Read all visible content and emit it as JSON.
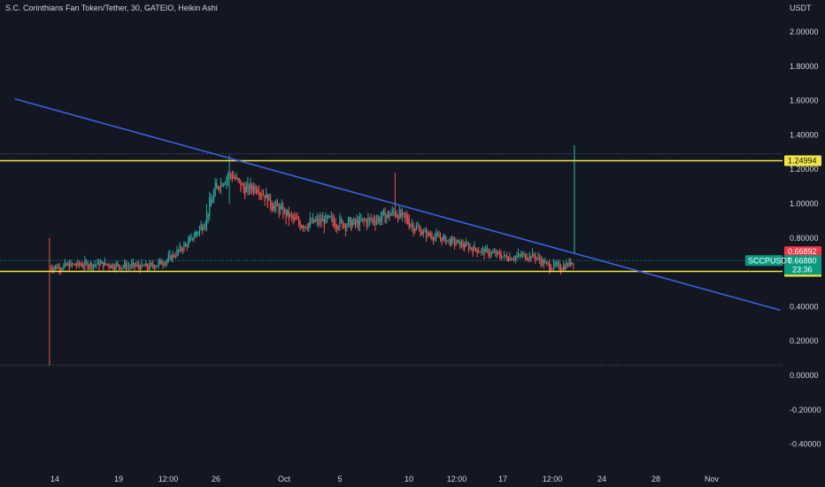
{
  "title": "S.C. Corinthians Fan Token/Tether, 30, GATEIO, Heikin Ashi",
  "chart_data": {
    "type": "candlestick",
    "symbol": "SCCPUSDT",
    "quote_currency": "USDT",
    "interval": "30",
    "exchange": "GATEIO",
    "candle_style": "Heikin Ashi",
    "y_ticks": [
      "2.00000",
      "1.80000",
      "1.60000",
      "1.40000",
      "1.20000",
      "1.00000",
      "0.80000",
      "0.40000",
      "0.20000",
      "0.00000",
      "-0.20000",
      "-0.40000"
    ],
    "ylim": [
      -0.5,
      2.18
    ],
    "x_ticks": [
      "14",
      "19",
      "12:00",
      "26",
      "Oct",
      "5",
      "10",
      "12:00",
      "17",
      "12:00",
      "24",
      "28",
      "Nov"
    ],
    "xlim": [
      "Sep 13",
      "Nov 2"
    ],
    "horizontal_levels": [
      {
        "value": 1.24994,
        "label": "1.24994",
        "color": "#f0e442"
      },
      {
        "value": 0.60542,
        "label": "0.60542",
        "color": "#f0e442"
      }
    ],
    "trendline": {
      "start": {
        "date": "Sep 11",
        "y": 1.61
      },
      "end": {
        "date": "Nov 6",
        "y": 0.38
      },
      "color": "#3a62e0"
    },
    "price_badges": [
      {
        "value": 0.66892,
        "label": "0.66892",
        "color": "#f23645"
      },
      {
        "value": 0.6688,
        "label": "0.66880",
        "symbol": "SCCPUSDT",
        "countdown": "23:36",
        "color": "#089981"
      }
    ],
    "dotted_lines": [
      1.29,
      0.06
    ],
    "series_path": [
      {
        "date": "Sep 13.6",
        "y": 0.63
      },
      {
        "date": "Sep 15",
        "y": 0.64
      },
      {
        "date": "Sep 17",
        "y": 0.65
      },
      {
        "date": "Sep 19",
        "y": 0.64
      },
      {
        "date": "Sep 21",
        "y": 0.63
      },
      {
        "date": "Sep 22.5",
        "y": 0.68
      },
      {
        "date": "Sep 24",
        "y": 0.78
      },
      {
        "date": "Sep 25",
        "y": 0.88
      },
      {
        "date": "Sep 26",
        "y": 1.1
      },
      {
        "date": "Sep 27",
        "y": 1.18
      },
      {
        "date": "Sep 28",
        "y": 1.08
      },
      {
        "date": "Sep 29",
        "y": 1.1
      },
      {
        "date": "Sep 30",
        "y": 1.0
      },
      {
        "date": "Oct 2",
        "y": 0.88
      },
      {
        "date": "Oct 4",
        "y": 0.9
      },
      {
        "date": "Oct 6",
        "y": 0.88
      },
      {
        "date": "Oct 8",
        "y": 0.92
      },
      {
        "date": "Oct 9",
        "y": 0.95
      },
      {
        "date": "Oct 11",
        "y": 0.83
      },
      {
        "date": "Oct 13",
        "y": 0.78
      },
      {
        "date": "Oct 15",
        "y": 0.73
      },
      {
        "date": "Oct 17",
        "y": 0.69
      },
      {
        "date": "Oct 19",
        "y": 0.7
      },
      {
        "date": "Oct 20",
        "y": 0.64
      },
      {
        "date": "Oct 21",
        "y": 0.63
      },
      {
        "date": "Oct 22",
        "y": 0.67
      }
    ],
    "spikes": [
      {
        "date": "Sep 13.6",
        "high": 0.8,
        "low": 0.06
      },
      {
        "date": "Sep 27",
        "high": 1.28,
        "low": 1.0
      },
      {
        "date": "Oct 9",
        "high": 1.18,
        "low": 0.96
      },
      {
        "date": "Oct 22",
        "high": 1.34,
        "low": 0.71
      }
    ],
    "colors": {
      "up": "#26a69a",
      "down": "#ef5350",
      "background": "#131722",
      "text": "#d1d4dc"
    }
  }
}
